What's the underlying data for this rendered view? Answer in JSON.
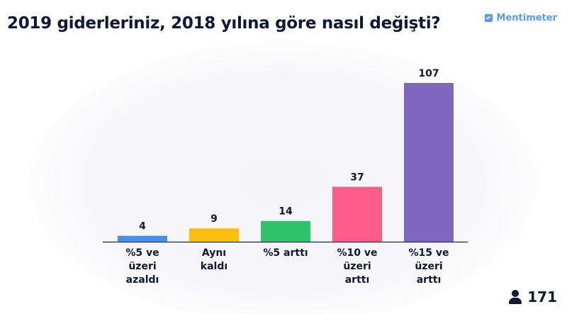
{
  "header": {
    "title": "2019 giderleriniz, 2018 yılına göre nasıl değişti?",
    "brand": "Mentimeter",
    "brand_icon": "mentimeter-logo-icon",
    "brand_color": "#5a9bf6"
  },
  "footer": {
    "participant_icon": "person-icon",
    "participant_count": "171"
  },
  "chart_data": {
    "type": "bar",
    "title": "2019 giderleriniz, 2018 yılına göre nasıl değişti?",
    "categories": [
      [
        "%5 ve",
        "üzeri",
        "azaldı"
      ],
      [
        "Aynı",
        "kaldı"
      ],
      [
        "%5 arttı"
      ],
      [
        "%10 ve",
        "üzeri",
        "arttı"
      ],
      [
        "%15 ve",
        "üzeri",
        "arttı"
      ]
    ],
    "values": [
      4,
      9,
      14,
      37,
      107
    ],
    "colors": [
      "#4a90e2",
      "#fbbf10",
      "#2dc26b",
      "#ff5c8a",
      "#7f67c0"
    ],
    "ylim": [
      0,
      107
    ],
    "grid": false,
    "legend": "none"
  }
}
